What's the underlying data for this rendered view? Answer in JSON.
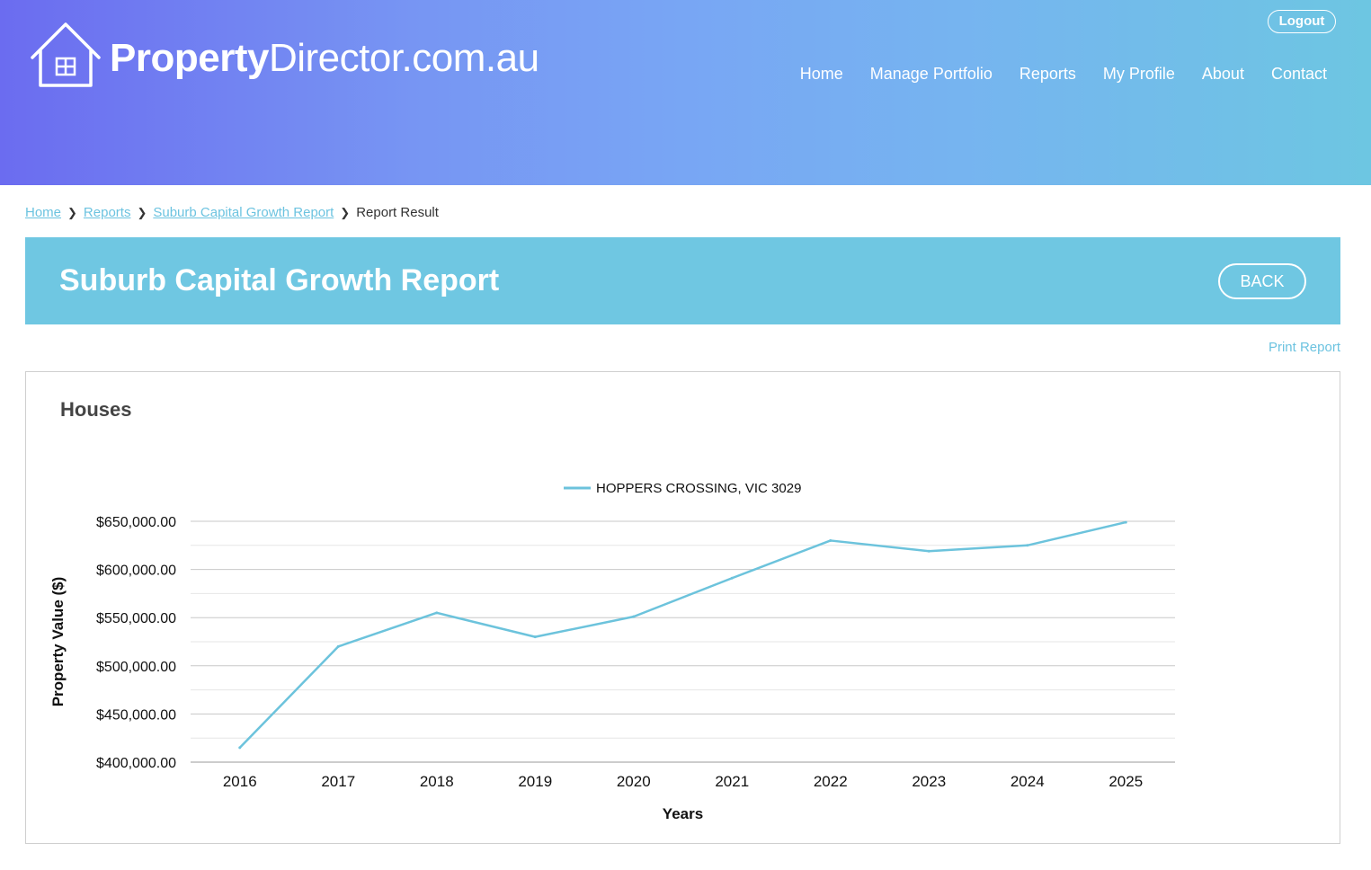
{
  "header": {
    "logo_bold": "Property",
    "logo_rest": "Director.com.au",
    "logout_label": "Logout",
    "nav": [
      "Home",
      "Manage Portfolio",
      "Reports",
      "My Profile",
      "About",
      "Contact"
    ]
  },
  "breadcrumb": {
    "items": [
      "Home",
      "Reports",
      "Suburb Capital Growth Report"
    ],
    "current": "Report Result"
  },
  "report": {
    "title": "Suburb Capital Growth Report",
    "back_label": "BACK",
    "print_label": "Print Report",
    "section_title": "Houses"
  },
  "colors": {
    "accent": "#6fc7e2",
    "line": "#6cc3dc",
    "link": "#6cc3e0"
  },
  "chart_data": {
    "type": "line",
    "x": [
      "2016",
      "2017",
      "2018",
      "2019",
      "2020",
      "2021",
      "2022",
      "2023",
      "2024",
      "2025"
    ],
    "series": [
      {
        "name": "HOPPERS CROSSING, VIC 3029",
        "values": [
          415000,
          520000,
          555000,
          530000,
          551000,
          591000,
          630000,
          619000,
          625000,
          649000
        ]
      }
    ],
    "xlabel": "Years",
    "ylabel": "Property Value ($)",
    "ylim": [
      400000,
      650000
    ],
    "yticks": [
      400000,
      450000,
      500000,
      550000,
      600000,
      650000
    ],
    "ytick_labels": [
      "$400,000.00",
      "$450,000.00",
      "$500,000.00",
      "$550,000.00",
      "$600,000.00",
      "$650,000.00"
    ],
    "grid": true,
    "legend": "top"
  }
}
